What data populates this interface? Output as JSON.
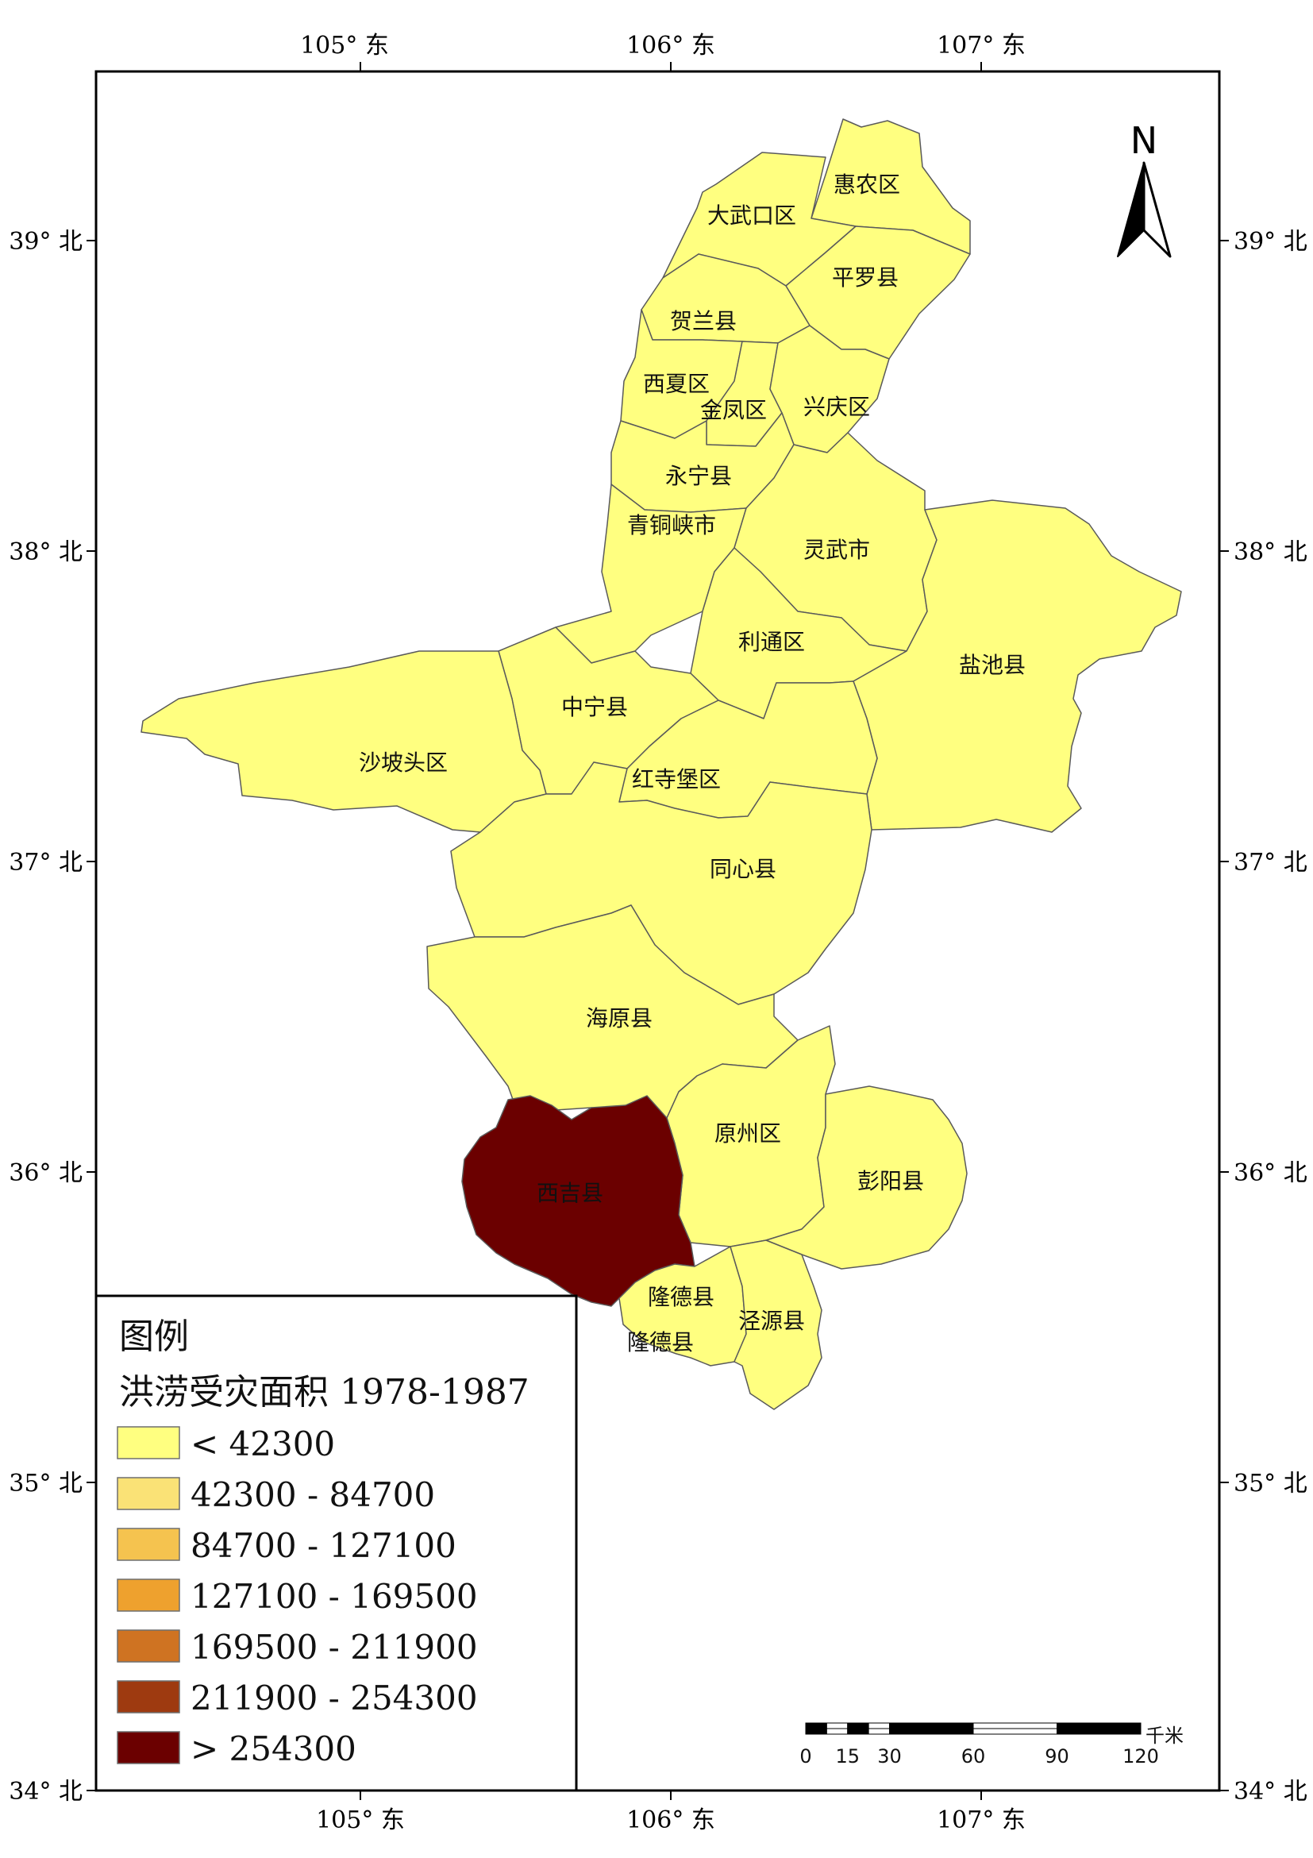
{
  "longitude_ticks": [
    {
      "label": "105° 东"
    },
    {
      "label": "106° 东"
    },
    {
      "label": "107° 东"
    }
  ],
  "latitude_ticks": [
    {
      "label": "39° 北"
    },
    {
      "label": "38° 北"
    },
    {
      "label": "37° 北"
    },
    {
      "label": "36° 北"
    },
    {
      "label": "35° 北"
    },
    {
      "label": "34° 北"
    }
  ],
  "north_arrow": {
    "label": "N",
    "icon": "north-arrow-icon"
  },
  "counties": [
    {
      "name": "惠农区",
      "class": 0
    },
    {
      "name": "大武口区",
      "class": 0
    },
    {
      "name": "平罗县",
      "class": 0
    },
    {
      "name": "贺兰县",
      "class": 0
    },
    {
      "name": "西夏区",
      "class": 0
    },
    {
      "name": "金凤区",
      "class": 0
    },
    {
      "name": "兴庆区",
      "class": 0
    },
    {
      "name": "永宁县",
      "class": 0
    },
    {
      "name": "青铜峡市",
      "class": 0
    },
    {
      "name": "灵武市",
      "class": 0
    },
    {
      "name": "利通区",
      "class": 0
    },
    {
      "name": "盐池县",
      "class": 0
    },
    {
      "name": "中宁县",
      "class": 0
    },
    {
      "name": "沙坡头区",
      "class": 0
    },
    {
      "name": "红寺堡区",
      "class": 0
    },
    {
      "name": "同心县",
      "class": 0
    },
    {
      "name": "海原县",
      "class": 0
    },
    {
      "name": "原州区",
      "class": 0
    },
    {
      "name": "彭阳县",
      "class": 0
    },
    {
      "name": "西吉县",
      "class": 6
    },
    {
      "name": "隆德县",
      "class": 0
    },
    {
      "name": "泾源县",
      "class": 0
    },
    {
      "name": "隆德县",
      "class": 0
    }
  ],
  "legend": {
    "title": "图例",
    "subtitle": "洪涝受灾面积 1978-1987",
    "classes": [
      {
        "label": "< 42300",
        "color": "#FFFF80"
      },
      {
        "label": "42300 - 84700",
        "color": "#FAE276"
      },
      {
        "label": "84700 - 127100",
        "color": "#F5C34F"
      },
      {
        "label": "127100 - 169500",
        "color": "#EEA12E"
      },
      {
        "label": "169500 - 211900",
        "color": "#CF7322"
      },
      {
        "label": "211900 - 254300",
        "color": "#9E3A10"
      },
      {
        "label": "> 254300",
        "color": "#6B0000"
      }
    ]
  },
  "scale_bar": {
    "unit": "千米",
    "ticks": [
      "0",
      "15",
      "30",
      "60",
      "90",
      "120"
    ]
  }
}
